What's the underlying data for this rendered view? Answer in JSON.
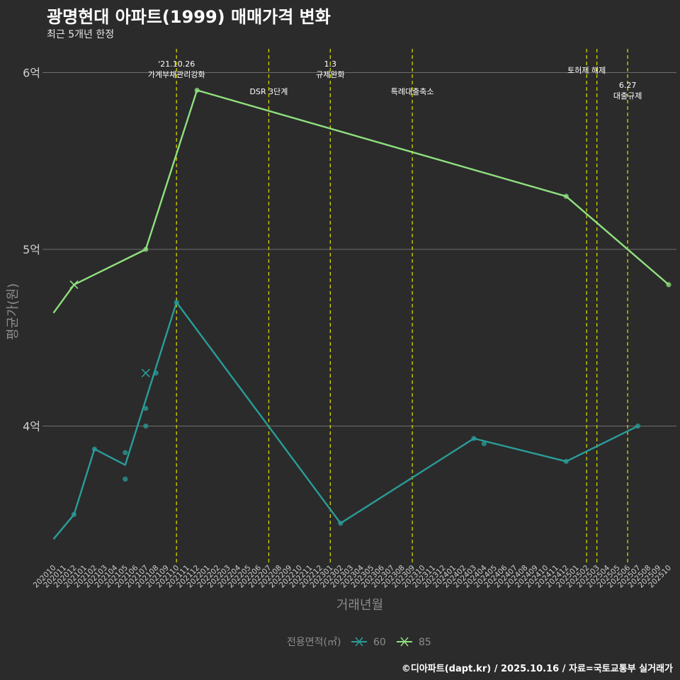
{
  "chart_data": {
    "type": "line",
    "title": "광명현대 아파트(1999) 매매가격 변화",
    "subtitle": "최근 5개년 한정",
    "xlabel": "거래년월",
    "ylabel": "평균가(원)",
    "caption": "©디아파트(dapt.kr) / 2025.10.16 / 자료=국토교통부 실거래가",
    "legend": {
      "title": "전용면적(㎡)",
      "position": "bottom",
      "entries": [
        "60",
        "85"
      ]
    },
    "ylim": [
      3.25,
      6.1
    ],
    "y_ticks": [
      {
        "value": 4,
        "label": "4억"
      },
      {
        "value": 5,
        "label": "5억"
      },
      {
        "value": 6,
        "label": "6억"
      }
    ],
    "categories": [
      "202010",
      "202011",
      "202012",
      "202101",
      "202102",
      "202103",
      "202104",
      "202105",
      "202106",
      "202107",
      "202108",
      "202109",
      "202110",
      "202111",
      "202112",
      "202201",
      "202202",
      "202203",
      "202204",
      "202205",
      "202206",
      "202207",
      "202208",
      "202209",
      "202210",
      "202211",
      "202212",
      "202301",
      "202302",
      "202303",
      "202304",
      "202305",
      "202306",
      "202307",
      "202308",
      "202309",
      "202310",
      "202311",
      "202312",
      "202401",
      "202402",
      "202403",
      "202404",
      "202405",
      "202406",
      "202407",
      "202408",
      "202409",
      "202410",
      "202411",
      "202412",
      "202501",
      "202502",
      "202503",
      "202504",
      "202505",
      "202506",
      "202507",
      "202508",
      "202509",
      "202510"
    ],
    "series": [
      {
        "name": "60",
        "color": "#2a9d9a",
        "line": [
          {
            "x": "202010",
            "y": 3.36
          },
          {
            "x": "202012",
            "y": 3.5
          },
          {
            "x": "202102",
            "y": 3.87
          },
          {
            "x": "202105",
            "y": 3.78
          },
          {
            "x": "202110",
            "y": 4.7
          },
          {
            "x": "202302",
            "y": 3.45
          },
          {
            "x": "202403",
            "y": 3.93
          },
          {
            "x": "202412",
            "y": 3.8
          },
          {
            "x": "202507",
            "y": 4.0
          }
        ],
        "points": [
          {
            "x": "202012",
            "y": 3.5
          },
          {
            "x": "202102",
            "y": 3.87
          },
          {
            "x": "202105",
            "y": 3.85
          },
          {
            "x": "202105",
            "y": 3.7
          },
          {
            "x": "202107",
            "y": 4.1
          },
          {
            "x": "202107",
            "y": 4.0
          },
          {
            "x": "202108",
            "y": 4.3
          },
          {
            "x": "202110",
            "y": 4.7
          },
          {
            "x": "202302",
            "y": 3.45
          },
          {
            "x": "202403",
            "y": 3.93
          },
          {
            "x": "202404",
            "y": 3.9
          },
          {
            "x": "202412",
            "y": 3.8
          },
          {
            "x": "202507",
            "y": 4.0
          }
        ],
        "cross_points": [
          {
            "x": "202107",
            "y": 4.3
          }
        ]
      },
      {
        "name": "85",
        "color": "#90e07f",
        "line": [
          {
            "x": "202010",
            "y": 4.64
          },
          {
            "x": "202012",
            "y": 4.8
          },
          {
            "x": "202107",
            "y": 5.0
          },
          {
            "x": "202112",
            "y": 5.9
          },
          {
            "x": "202412",
            "y": 5.3
          },
          {
            "x": "202510",
            "y": 4.8
          }
        ],
        "points": [
          {
            "x": "202107",
            "y": 5.0
          },
          {
            "x": "202112",
            "y": 5.9
          },
          {
            "x": "202412",
            "y": 5.3
          },
          {
            "x": "202510",
            "y": 4.8
          }
        ],
        "cross_points": [
          {
            "x": "202012",
            "y": 4.8
          }
        ]
      }
    ],
    "events": [
      {
        "x": "202110",
        "lines": [
          "'21.10.26",
          "가계부채관리강화"
        ],
        "level": "high"
      },
      {
        "x": "202207",
        "lines": [
          "DSR 3단계"
        ],
        "level": "low"
      },
      {
        "x": "202301",
        "lines": [
          "1.3",
          "규제완화"
        ],
        "level": "high"
      },
      {
        "x": "202309",
        "lines": [
          "특례대출축소"
        ],
        "level": "low"
      },
      {
        "x": "202502",
        "lines": [
          "토허제 해제"
        ],
        "level": "mid"
      },
      {
        "x": "202503",
        "lines": [],
        "level": "mid"
      },
      {
        "x": "202506",
        "lines": [
          "6.27",
          "대출규제"
        ],
        "level": "lower"
      }
    ],
    "colors": {
      "background": "#2b2b2b",
      "grid": "#6e6e6e",
      "event_line": "#d4d400",
      "text": "#ffffff",
      "axis_text": "#cfcfcf",
      "axis_title": "#8c8c8c"
    }
  }
}
